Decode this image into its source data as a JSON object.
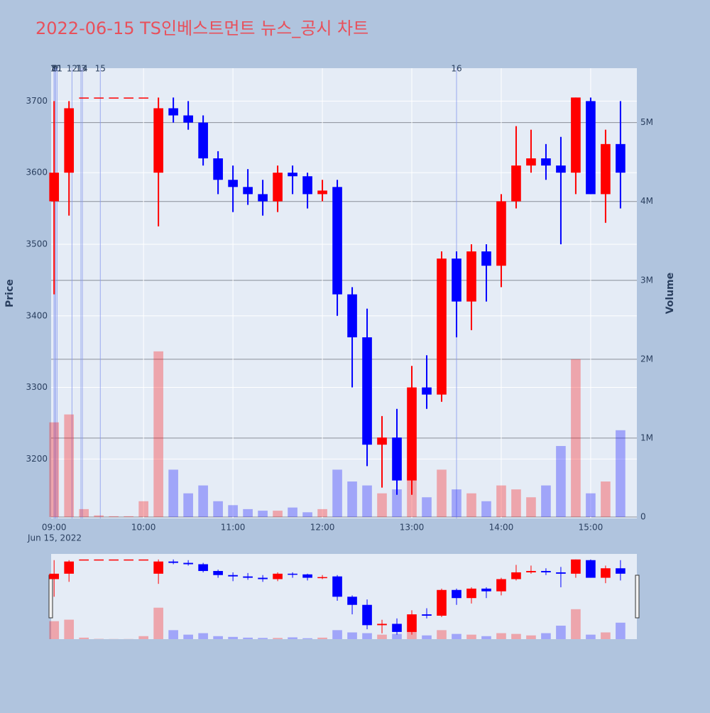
{
  "chart_data": {
    "type": "candlestick",
    "title": "2022-06-15 TS인베스트먼트 뉴스_공시 차트",
    "y_label": "Price",
    "y2_label": "Volume",
    "x_date_label": "Jun 15, 2022",
    "increasing_color": "#ff0000",
    "decreasing_color": "#0000ff",
    "x": [
      "2022-06-15 09:00",
      "2022-06-15 09:10",
      "2022-06-15 09:20",
      "2022-06-15 09:30",
      "2022-06-15 09:40",
      "2022-06-15 09:50",
      "2022-06-15 10:00",
      "2022-06-15 10:10",
      "2022-06-15 10:20",
      "2022-06-15 10:30",
      "2022-06-15 10:40",
      "2022-06-15 10:50",
      "2022-06-15 11:00",
      "2022-06-15 11:10",
      "2022-06-15 11:20",
      "2022-06-15 11:30",
      "2022-06-15 11:40",
      "2022-06-15 11:50",
      "2022-06-15 12:00",
      "2022-06-15 12:10",
      "2022-06-15 12:20",
      "2022-06-15 12:30",
      "2022-06-15 12:40",
      "2022-06-15 12:50",
      "2022-06-15 13:00",
      "2022-06-15 13:10",
      "2022-06-15 13:20",
      "2022-06-15 13:30",
      "2022-06-15 13:40",
      "2022-06-15 13:50",
      "2022-06-15 14:00",
      "2022-06-15 14:10",
      "2022-06-15 14:20",
      "2022-06-15 14:30",
      "2022-06-15 14:40",
      "2022-06-15 14:50",
      "2022-06-15 15:00",
      "2022-06-15 15:10",
      "2022-06-15 15:20"
    ],
    "open": [
      3560,
      3600,
      3705,
      3705,
      3705,
      3705,
      3705,
      3600,
      3690,
      3680,
      3670,
      3620,
      3590,
      3580,
      3570,
      3560,
      3600,
      3595,
      3570,
      3580,
      3430,
      3370,
      3220,
      3230,
      3170,
      3300,
      3290,
      3480,
      3420,
      3490,
      3470,
      3560,
      3610,
      3620,
      3610,
      3600,
      3700,
      3570,
      3640
    ],
    "high": [
      3700,
      3700,
      3705,
      3705,
      3705,
      3705,
      3705,
      3705,
      3705,
      3700,
      3680,
      3630,
      3610,
      3605,
      3590,
      3610,
      3610,
      3600,
      3590,
      3590,
      3440,
      3410,
      3260,
      3270,
      3330,
      3345,
      3490,
      3490,
      3500,
      3500,
      3570,
      3665,
      3660,
      3640,
      3650,
      3705,
      3705,
      3660,
      3700
    ],
    "low": [
      3430,
      3540,
      3705,
      3705,
      3705,
      3705,
      3705,
      3525,
      3670,
      3660,
      3610,
      3570,
      3545,
      3555,
      3540,
      3545,
      3570,
      3550,
      3560,
      3400,
      3300,
      3190,
      3160,
      3150,
      3150,
      3270,
      3280,
      3370,
      3380,
      3420,
      3440,
      3550,
      3600,
      3590,
      3500,
      3570,
      3570,
      3530,
      3550
    ],
    "close": [
      3600,
      3690,
      3705,
      3705,
      3705,
      3705,
      3705,
      3690,
      3680,
      3670,
      3620,
      3590,
      3580,
      3570,
      3560,
      3600,
      3595,
      3570,
      3575,
      3430,
      3370,
      3220,
      3230,
      3170,
      3300,
      3290,
      3480,
      3420,
      3490,
      3470,
      3560,
      3610,
      3620,
      3610,
      3600,
      3705,
      3570,
      3640,
      3600
    ],
    "volume": [
      1200000,
      1300000,
      100000,
      20000,
      10000,
      10000,
      200000,
      2100000,
      600000,
      300000,
      400000,
      200000,
      150000,
      100000,
      80000,
      80000,
      120000,
      60000,
      100000,
      600000,
      450000,
      400000,
      300000,
      350000,
      550000,
      250000,
      600000,
      350000,
      300000,
      200000,
      400000,
      350000,
      250000,
      400000,
      900000,
      2000000,
      300000,
      450000,
      1100000
    ],
    "news": [
      {
        "x": "2022-06-15 09:00",
        "label": "7"
      },
      {
        "x": "2022-06-15 09:00",
        "label": "8"
      },
      {
        "x": "2022-06-15 09:01",
        "label": "9"
      },
      {
        "x": "2022-06-15 09:01",
        "label": "10"
      },
      {
        "x": "2022-06-15 09:02",
        "label": "11"
      },
      {
        "x": "2022-06-15 09:12",
        "label": "12"
      },
      {
        "x": "2022-06-15 09:18",
        "label": "13"
      },
      {
        "x": "2022-06-15 09:19",
        "label": "14"
      },
      {
        "x": "2022-06-15 09:31",
        "label": "15"
      },
      {
        "x": "2022-06-15 13:30",
        "label": "16"
      }
    ],
    "xlim": [
      "2022-06-15 08:58",
      "2022-06-15 15:31"
    ],
    "xticks": [
      {
        "value": "2022-06-15 09:00",
        "label": "09:00"
      },
      {
        "value": "2022-06-15 10:00",
        "label": "10:00"
      },
      {
        "value": "2022-06-15 11:00",
        "label": "11:00"
      },
      {
        "value": "2022-06-15 12:00",
        "label": "12:00"
      },
      {
        "value": "2022-06-15 13:00",
        "label": "13:00"
      },
      {
        "value": "2022-06-15 14:00",
        "label": "14:00"
      },
      {
        "value": "2022-06-15 15:00",
        "label": "15:00"
      }
    ],
    "ylim": [
      3117,
      3746
    ],
    "yticks": [
      3200,
      3300,
      3400,
      3500,
      3600,
      3700
    ],
    "y2lim": [
      0,
      5690000
    ],
    "y2ticks": [
      0,
      {
        "value": 1000000,
        "label": "1M"
      },
      {
        "value": 2000000,
        "label": "2M"
      },
      {
        "value": 3000000,
        "label": "3M"
      },
      {
        "value": 4000000,
        "label": "4M"
      },
      {
        "value": 5000000,
        "label": "5M"
      }
    ],
    "grid": true,
    "rangeslider": true
  }
}
